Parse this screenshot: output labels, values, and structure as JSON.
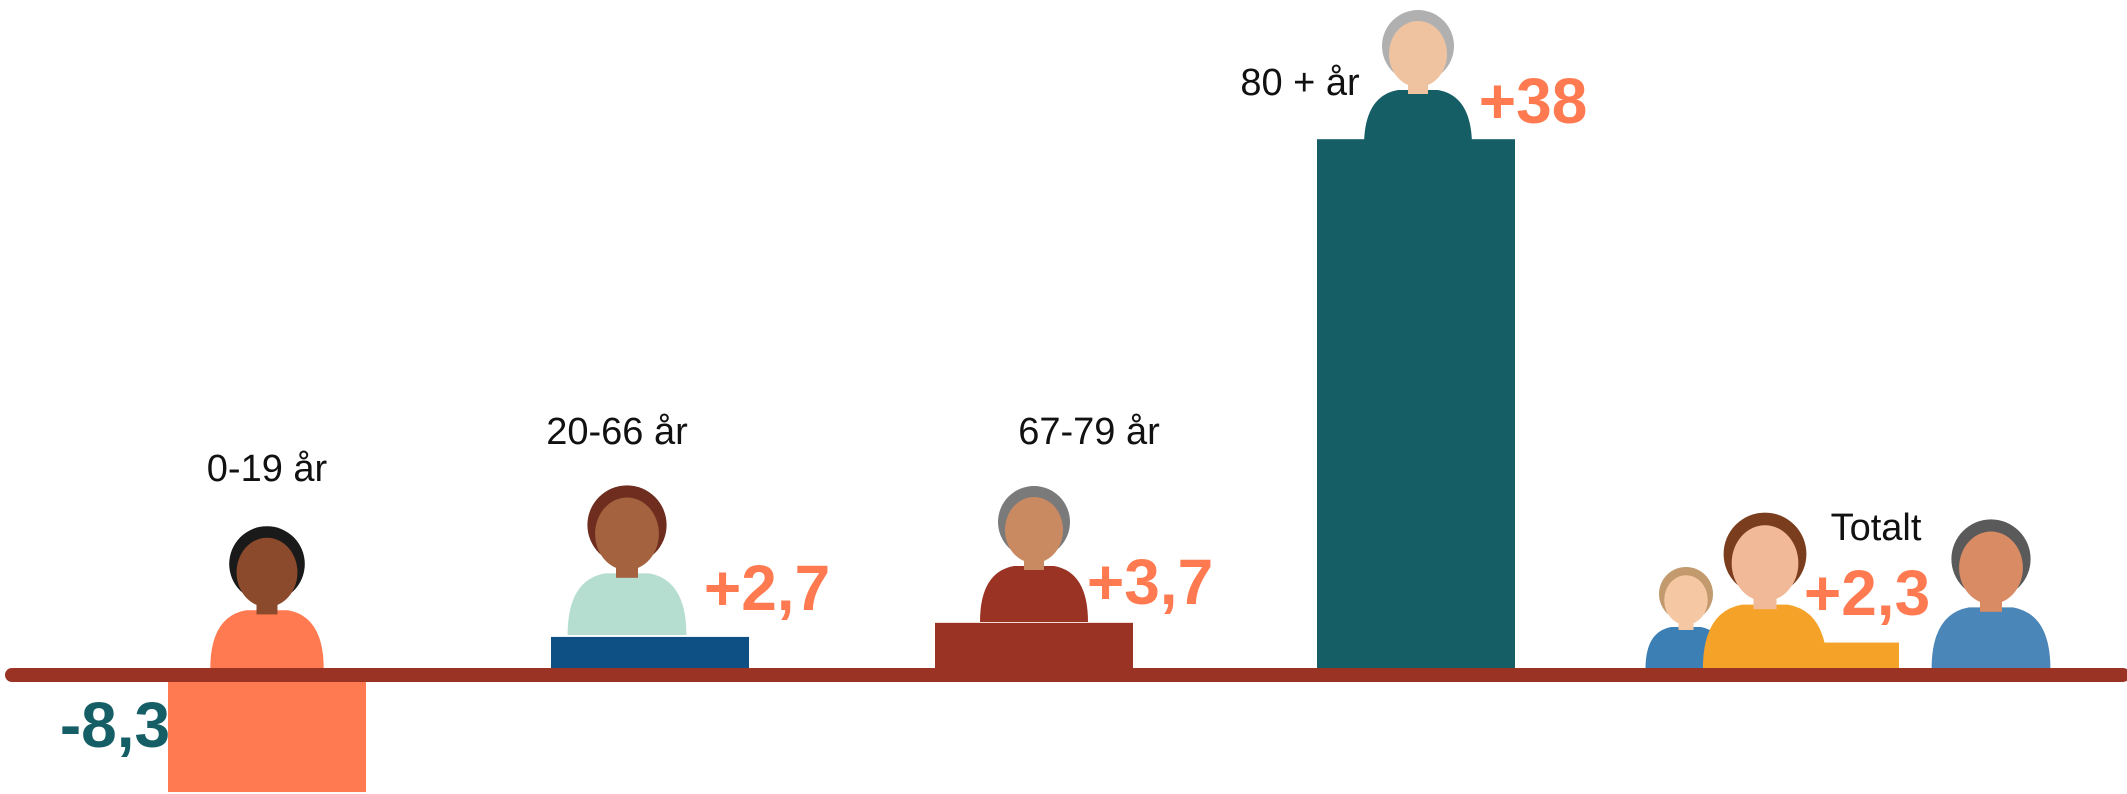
{
  "chart_data": {
    "type": "bar",
    "categories": [
      "0-19 år",
      "20-66 år",
      "67-79 år",
      "80 + år",
      "Totalt"
    ],
    "values": [
      -8.3,
      2.7,
      3.7,
      38,
      2.3
    ],
    "value_labels": [
      "-8,3",
      "+2,7",
      "+3,7",
      "+38",
      "+2,3"
    ],
    "colors": [
      "#ff7a50",
      "#0e4f84",
      "#9b3324",
      "#155e66",
      "#f4a228"
    ],
    "label_colors": [
      "#155e66",
      "#ff7a50",
      "#ff7a50",
      "#ff7a50",
      "#ff7a50"
    ]
  }
}
